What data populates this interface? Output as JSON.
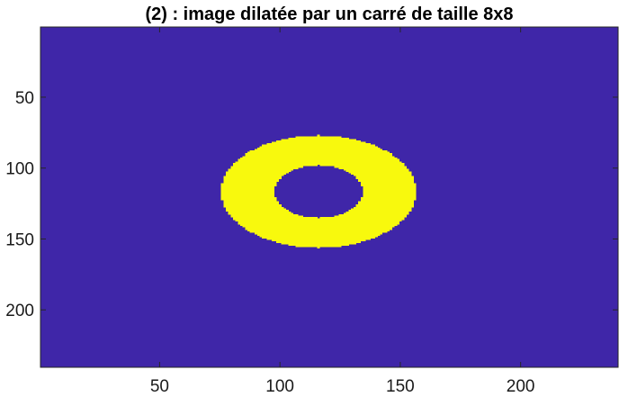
{
  "chart_data": {
    "type": "heatmap",
    "title": "(2) : image dilatée par un carré de taille 8x8",
    "xlabel": "",
    "ylabel": "",
    "xlim": [
      0.5,
      240.5
    ],
    "ylim": [
      0.5,
      240.5
    ],
    "y_direction": "reversed",
    "xticks": [
      50,
      100,
      150,
      200
    ],
    "yticks": [
      50,
      100,
      150,
      200
    ],
    "grid": false,
    "background_color": "#3f26a8",
    "foreground_color": "#f8f90d",
    "regions": [
      {
        "shape": "ellipse-ring",
        "value": 1,
        "center": [
          116,
          116.5
        ],
        "outer_radii": [
          40.5,
          39.5
        ],
        "inner_radii": [
          18.5,
          18.5
        ]
      }
    ]
  }
}
